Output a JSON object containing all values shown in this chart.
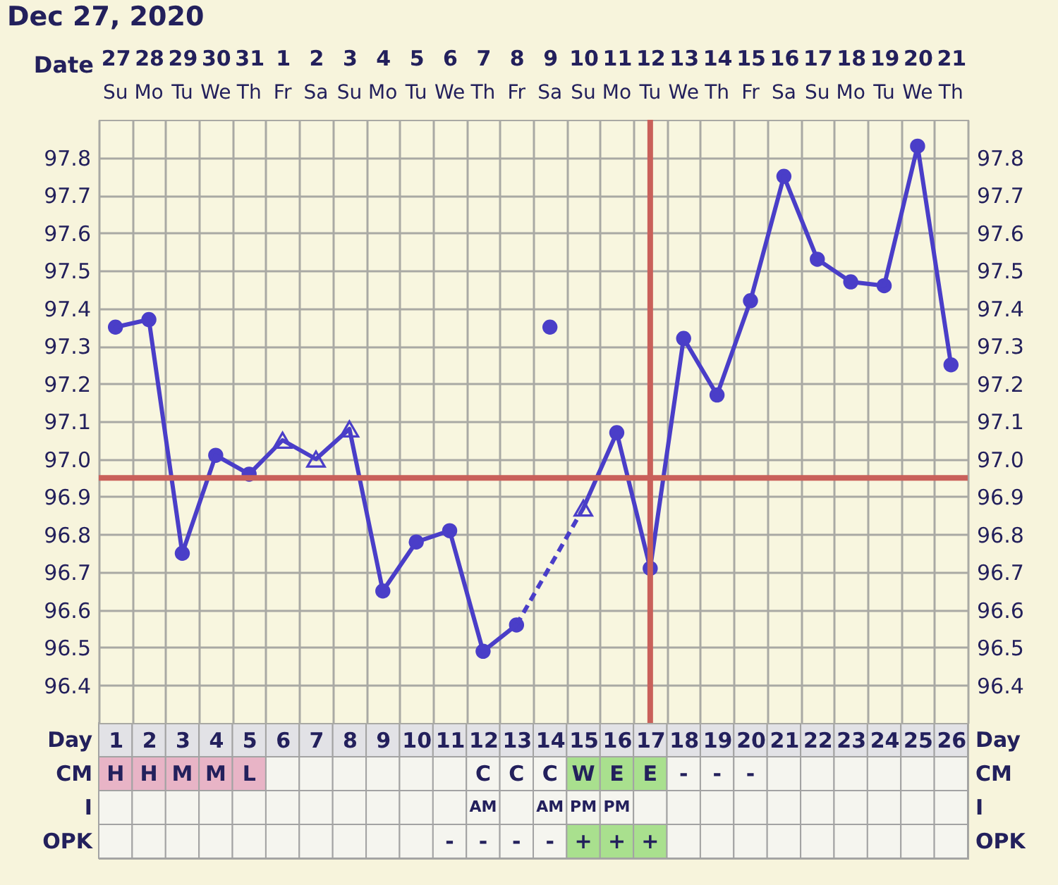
{
  "chart_data": [
    {
      "type": "line",
      "title": "Dec 27, 2020",
      "x": [
        1,
        2,
        3,
        4,
        5,
        6,
        7,
        8,
        9,
        10,
        11,
        12,
        13,
        14,
        15,
        16,
        17,
        18,
        19,
        20,
        21,
        22,
        23,
        24,
        25,
        26
      ],
      "xlim": [
        0.5,
        26.5
      ],
      "xticks": [
        {
          "value": 0.5,
          "label": null
        },
        1,
        {
          "value": 1.5,
          "label": null
        },
        2,
        {
          "value": 2.5,
          "label": null
        },
        3,
        {
          "value": 3.5,
          "label": null
        },
        4,
        {
          "value": 4.5,
          "label": null
        },
        5,
        {
          "value": 5.5,
          "label": null
        },
        6,
        {
          "value": 6.5,
          "label": null
        },
        7,
        {
          "value": 7.5,
          "label": null
        },
        8,
        {
          "value": 8.5,
          "label": null
        },
        9,
        {
          "value": 9.5,
          "label": null
        },
        10,
        {
          "value": 10.5,
          "label": null
        },
        11,
        {
          "value": 11.5,
          "label": null
        },
        12,
        {
          "value": 12.5,
          "label": null
        },
        13,
        {
          "value": 13.5,
          "label": null
        },
        14,
        {
          "value": 14.5,
          "label": null
        },
        15,
        {
          "value": 15.5,
          "label": null
        },
        16,
        {
          "value": 16.5,
          "label": null
        },
        17,
        {
          "value": 17.5,
          "label": null
        },
        18,
        {
          "value": 18.5,
          "label": null
        },
        19,
        {
          "value": 19.5,
          "label": null
        },
        20,
        {
          "value": 20.5,
          "label": null
        },
        21,
        {
          "value": 21.5,
          "label": null
        },
        22,
        {
          "value": 22.5,
          "label": null
        },
        23,
        {
          "value": 23.5,
          "label": null
        },
        24,
        {
          "value": 24.5,
          "label": null
        },
        25,
        {
          "value": 25.5,
          "label": null
        },
        26,
        {
          "value": 26.5,
          "label": null
        }
      ],
      "x2label": "Date",
      "x2lim": [
        "2020-12-26T12:00",
        "2021-01-21T12:00"
      ],
      "x2ticks": [
        {
          "value": "2020-12-27",
          "label": "27"
        },
        {
          "value": "2020-12-28",
          "label": "28"
        },
        {
          "value": "2020-12-29",
          "label": "29"
        },
        {
          "value": "2020-12-30",
          "label": "30"
        },
        {
          "value": "2020-12-31",
          "label": "31"
        },
        {
          "value": "2021-01-01",
          "label": "1"
        },
        {
          "value": "2021-01-02",
          "label": "2"
        },
        {
          "value": "2021-01-03",
          "label": "3"
        },
        {
          "value": "2021-01-04",
          "label": "4"
        },
        {
          "value": "2021-01-05",
          "label": "5"
        },
        {
          "value": "2021-01-06",
          "label": "6"
        },
        {
          "value": "2021-01-07",
          "label": "7"
        },
        {
          "value": "2021-01-08",
          "label": "8"
        },
        {
          "value": "2021-01-09",
          "label": "9"
        },
        {
          "value": "2021-01-10",
          "label": "10"
        },
        {
          "value": "2021-01-11",
          "label": "11"
        },
        {
          "value": "2021-01-12",
          "label": "12"
        },
        {
          "value": "2021-01-13",
          "label": "13"
        },
        {
          "value": "2021-01-14",
          "label": "14"
        },
        {
          "value": "2021-01-15",
          "label": "15"
        },
        {
          "value": "2021-01-16",
          "label": "16"
        },
        {
          "value": "2021-01-17",
          "label": "17"
        },
        {
          "value": "2021-01-18",
          "label": "18"
        },
        {
          "value": "2021-01-19",
          "label": "19"
        },
        {
          "value": "2021-01-20",
          "label": "20"
        },
        {
          "value": "2021-01-21",
          "label": "21"
        }
      ],
      "annotations": [
        "Su",
        "Mo",
        "Tu",
        "We",
        "Th",
        "Fr",
        "Sa",
        "Su",
        "Mo",
        "Tu",
        "We",
        "Th",
        "Fr",
        "Sa",
        "Su",
        "Mo",
        "Tu",
        "We",
        "Th",
        "Fr",
        "Sa",
        "Su",
        "Mo",
        "Tu",
        "We",
        "Th"
      ],
      "ylim": [
        96.3,
        97.9
      ],
      "yticks": [
        96.4,
        96.5,
        96.6,
        96.7,
        96.8,
        96.9,
        {
          "value": 97,
          "label": "97.0"
        },
        97.1,
        97.2,
        97.3,
        97.4,
        97.5,
        97.6,
        97.7,
        97.8
      ],
      "y2lim": [
        96.3,
        97.9
      ],
      "y2ticks": [
        96.4,
        96.5,
        96.6,
        96.7,
        96.8,
        96.9,
        {
          "value": 97,
          "label": "97.0"
        },
        97.1,
        97.2,
        97.3,
        97.4,
        97.5,
        97.6,
        97.7,
        97.8
      ],
      "grid": true,
      "series": [
        {
          "type": "line",
          "color": "#4a3ec8",
          "marker": "none",
          "line_style": "dashed",
          "x": [
            13,
            15
          ],
          "values": [
            96.56,
            96.87
          ]
        },
        {
          "type": "line",
          "color": "#4a3ec8",
          "marker": "none",
          "line_style": "solid",
          "values": [
            97.35,
            97.37,
            96.75,
            97.01,
            96.96,
            97.05,
            97.0,
            97.08,
            96.65,
            96.78,
            96.81,
            96.49,
            96.56,
            null,
            96.87,
            97.07,
            96.71,
            97.32,
            97.17,
            97.42,
            97.75,
            97.53,
            97.47,
            97.46,
            97.83,
            97.25
          ]
        },
        {
          "type": "scatter",
          "color": "#4a3ec8",
          "marker": "circle",
          "values": [
            97.35,
            97.37,
            96.75,
            97.01,
            96.96,
            null,
            null,
            null,
            96.65,
            96.78,
            96.81,
            96.49,
            96.56,
            97.35,
            null,
            97.07,
            96.71,
            97.32,
            97.17,
            97.42,
            97.75,
            97.53,
            97.47,
            97.46,
            97.83,
            97.25
          ]
        },
        {
          "type": "scatter",
          "color": "#4a3ec8",
          "marker": "triangle",
          "values": [
            null,
            null,
            null,
            null,
            null,
            97.05,
            97.0,
            97.08,
            null,
            null,
            null,
            null,
            null,
            null,
            96.87,
            null,
            null,
            null,
            null,
            null,
            null,
            null,
            null,
            null,
            null,
            null
          ]
        }
      ],
      "ref_lines": [
        {
          "axis": "y",
          "value": 96.95,
          "color": "#c9605a"
        },
        {
          "axis": "x",
          "value": 17,
          "color": "#c9605a"
        }
      ]
    },
    {
      "type": "heatmap",
      "categories": [
        null,
        null,
        null,
        null,
        null,
        null,
        null,
        null,
        null,
        null,
        null,
        null,
        null,
        null,
        null,
        null,
        null,
        null,
        null,
        null,
        null,
        null,
        null,
        null,
        null,
        null
      ],
      "tick_labels": "y",
      "y_categories": [
        "Day",
        "CM",
        "I",
        "OPK"
      ],
      "y2_categories": [
        "Day",
        "CM",
        "I",
        "OPK"
      ],
      "cells": [
        [
          null,
          null,
          null,
          null,
          null,
          null,
          null,
          null,
          null,
          null,
          null,
          null,
          null,
          null,
          null,
          null,
          null,
          null,
          null,
          null,
          null,
          null,
          null,
          null,
          null,
          null
        ],
        [
          null,
          null,
          null,
          null,
          null,
          null,
          null,
          null,
          null,
          null,
          null,
          null,
          null,
          null,
          null,
          null,
          null,
          null,
          null,
          null,
          null,
          null,
          null,
          null,
          null,
          null
        ],
        [
          null,
          null,
          null,
          null,
          null,
          null,
          null,
          null,
          null,
          null,
          null,
          null,
          null,
          null,
          null,
          null,
          null,
          null,
          null,
          null,
          null,
          null,
          null,
          null,
          null,
          null
        ],
        [
          null,
          null,
          null,
          null,
          null,
          null,
          null,
          null,
          null,
          null,
          null,
          null,
          null,
          null,
          null,
          null,
          null,
          null,
          null,
          null,
          null,
          null,
          null,
          null,
          null,
          null
        ]
      ],
      "cell_labels": [
        [
          null,
          null,
          null,
          null,
          null,
          null,
          null,
          null,
          null,
          null,
          null,
          null,
          null,
          null,
          null,
          null,
          null,
          null,
          null,
          null,
          null,
          null,
          null,
          null,
          null,
          null
        ],
        [
          "H",
          "H",
          "M",
          "M",
          "L",
          null,
          null,
          null,
          null,
          null,
          null,
          "C",
          "C",
          "C",
          "W",
          "E",
          "E",
          "-",
          "-",
          "-",
          null,
          null,
          null,
          null,
          null,
          null
        ],
        [
          null,
          null,
          null,
          null,
          null,
          null,
          null,
          null,
          null,
          null,
          null,
          "AM",
          null,
          "AM",
          "PM",
          "PM",
          null,
          null,
          null,
          null,
          null,
          null,
          null,
          null,
          null,
          null
        ],
        [
          null,
          null,
          null,
          null,
          null,
          null,
          null,
          null,
          null,
          null,
          "-",
          "-",
          "-",
          "-",
          "+",
          "+",
          "+",
          null,
          null,
          null,
          null,
          null,
          null,
          null,
          null,
          null
        ]
      ],
      "colors": [
        [
          "#e2e2e6",
          "#e2e2e6",
          "#e2e2e6",
          "#e2e2e6",
          "#e2e2e6",
          "#e2e2e6",
          "#e2e2e6",
          "#e2e2e6",
          "#e2e2e6",
          "#e2e2e6",
          "#e2e2e6",
          "#e2e2e6",
          "#e2e2e6",
          "#e2e2e6",
          "#e2e2e6",
          "#e2e2e6",
          "#e2e2e6",
          "#e2e2e6",
          "#e2e2e6",
          "#e2e2e6",
          "#e2e2e6",
          "#e2e2e6",
          "#e2e2e6",
          "#e2e2e6",
          "#e2e2e6",
          "#e2e2e6"
        ],
        [
          "#e8b4c6",
          "#e8b4c6",
          "#e8b4c6",
          "#e8b4c6",
          "#e8b4c6",
          "#f5f5ef",
          "#f5f5ef",
          "#f5f5ef",
          "#f5f5ef",
          "#f5f5ef",
          "#f5f5ef",
          "#f5f5ef",
          "#f5f5ef",
          "#f5f5ef",
          "#a9e08e",
          "#a9e08e",
          "#a9e08e",
          "#f5f5ef",
          "#f5f5ef",
          "#f5f5ef",
          "#f5f5ef",
          "#f5f5ef",
          "#f5f5ef",
          "#f5f5ef",
          "#f5f5ef",
          "#f5f5ef"
        ],
        [
          "#f5f5ef",
          "#f5f5ef",
          "#f5f5ef",
          "#f5f5ef",
          "#f5f5ef",
          "#f5f5ef",
          "#f5f5ef",
          "#f5f5ef",
          "#f5f5ef",
          "#f5f5ef",
          "#f5f5ef",
          "#f5f5ef",
          "#f5f5ef",
          "#f5f5ef",
          "#f5f5ef",
          "#f5f5ef",
          "#f5f5ef",
          "#f5f5ef",
          "#f5f5ef",
          "#f5f5ef",
          "#f5f5ef",
          "#f5f5ef",
          "#f5f5ef",
          "#f5f5ef",
          "#f5f5ef",
          "#f5f5ef"
        ],
        [
          "#f5f5ef",
          "#f5f5ef",
          "#f5f5ef",
          "#f5f5ef",
          "#f5f5ef",
          "#f5f5ef",
          "#f5f5ef",
          "#f5f5ef",
          "#f5f5ef",
          "#f5f5ef",
          "#f5f5ef",
          "#f5f5ef",
          "#f5f5ef",
          "#f5f5ef",
          "#a9e08e",
          "#a9e08e",
          "#a9e08e",
          "#f5f5ef",
          "#f5f5ef",
          "#f5f5ef",
          "#f5f5ef",
          "#f5f5ef",
          "#f5f5ef",
          "#f5f5ef",
          "#f5f5ef",
          "#f5f5ef"
        ]
      ]
    }
  ]
}
